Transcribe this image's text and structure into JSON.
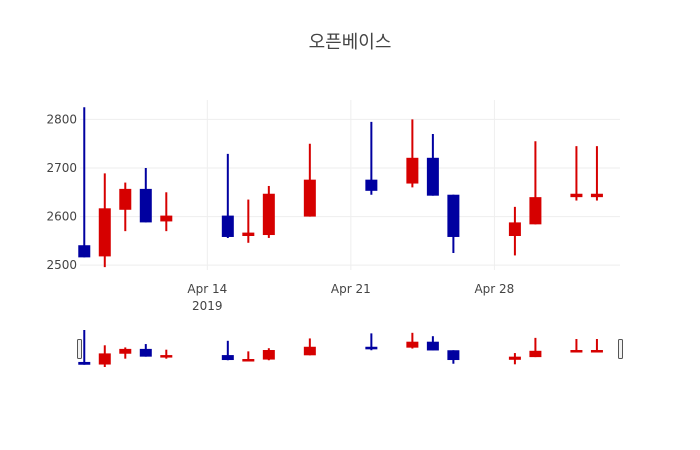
{
  "chart_data": {
    "type": "candlestick",
    "title": "오픈베이스",
    "xlabel": "",
    "ylabel": "",
    "ylim": [
      2490,
      2840
    ],
    "yticks": [
      2500,
      2600,
      2700,
      2800
    ],
    "xticks": [
      {
        "date": "2019-04-14",
        "label": "Apr 14",
        "sublabel": "2019"
      },
      {
        "date": "2019-04-21",
        "label": "Apr 21",
        "sublabel": ""
      },
      {
        "date": "2019-04-28",
        "label": "Apr 28",
        "sublabel": ""
      }
    ],
    "xrange": [
      "2019-04-07T19:00",
      "2019-05-04T03:00"
    ],
    "grid": true,
    "rangeslider": true,
    "colors": {
      "increasing": "#d60000",
      "decreasing": "#0000a0"
    },
    "series": [
      {
        "date": "2019-04-08",
        "open": 2541,
        "high": 2825,
        "low": 2516,
        "close": 2516
      },
      {
        "date": "2019-04-09",
        "open": 2518,
        "high": 2689,
        "low": 2496,
        "close": 2617
      },
      {
        "date": "2019-04-10",
        "open": 2614,
        "high": 2670,
        "low": 2570,
        "close": 2657
      },
      {
        "date": "2019-04-11",
        "open": 2657,
        "high": 2700,
        "low": 2588,
        "close": 2588
      },
      {
        "date": "2019-04-12",
        "open": 2590,
        "high": 2650,
        "low": 2570,
        "close": 2602
      },
      {
        "date": "2019-04-15",
        "open": 2602,
        "high": 2729,
        "low": 2556,
        "close": 2558
      },
      {
        "date": "2019-04-16",
        "open": 2560,
        "high": 2635,
        "low": 2546,
        "close": 2567
      },
      {
        "date": "2019-04-17",
        "open": 2562,
        "high": 2663,
        "low": 2556,
        "close": 2647
      },
      {
        "date": "2019-04-19",
        "open": 2600,
        "high": 2750,
        "low": 2600,
        "close": 2676
      },
      {
        "date": "2019-04-22",
        "open": 2676,
        "high": 2795,
        "low": 2645,
        "close": 2653
      },
      {
        "date": "2019-04-24",
        "open": 2668,
        "high": 2800,
        "low": 2660,
        "close": 2721
      },
      {
        "date": "2019-04-25",
        "open": 2721,
        "high": 2770,
        "low": 2643,
        "close": 2643
      },
      {
        "date": "2019-04-26",
        "open": 2645,
        "high": 2645,
        "low": 2525,
        "close": 2558
      },
      {
        "date": "2019-04-29",
        "open": 2560,
        "high": 2620,
        "low": 2520,
        "close": 2588
      },
      {
        "date": "2019-04-30",
        "open": 2584,
        "high": 2755,
        "low": 2584,
        "close": 2640
      },
      {
        "date": "2019-05-02",
        "open": 2640,
        "high": 2745,
        "low": 2633,
        "close": 2647
      },
      {
        "date": "2019-05-03",
        "open": 2640,
        "high": 2745,
        "low": 2633,
        "close": 2647
      }
    ]
  }
}
